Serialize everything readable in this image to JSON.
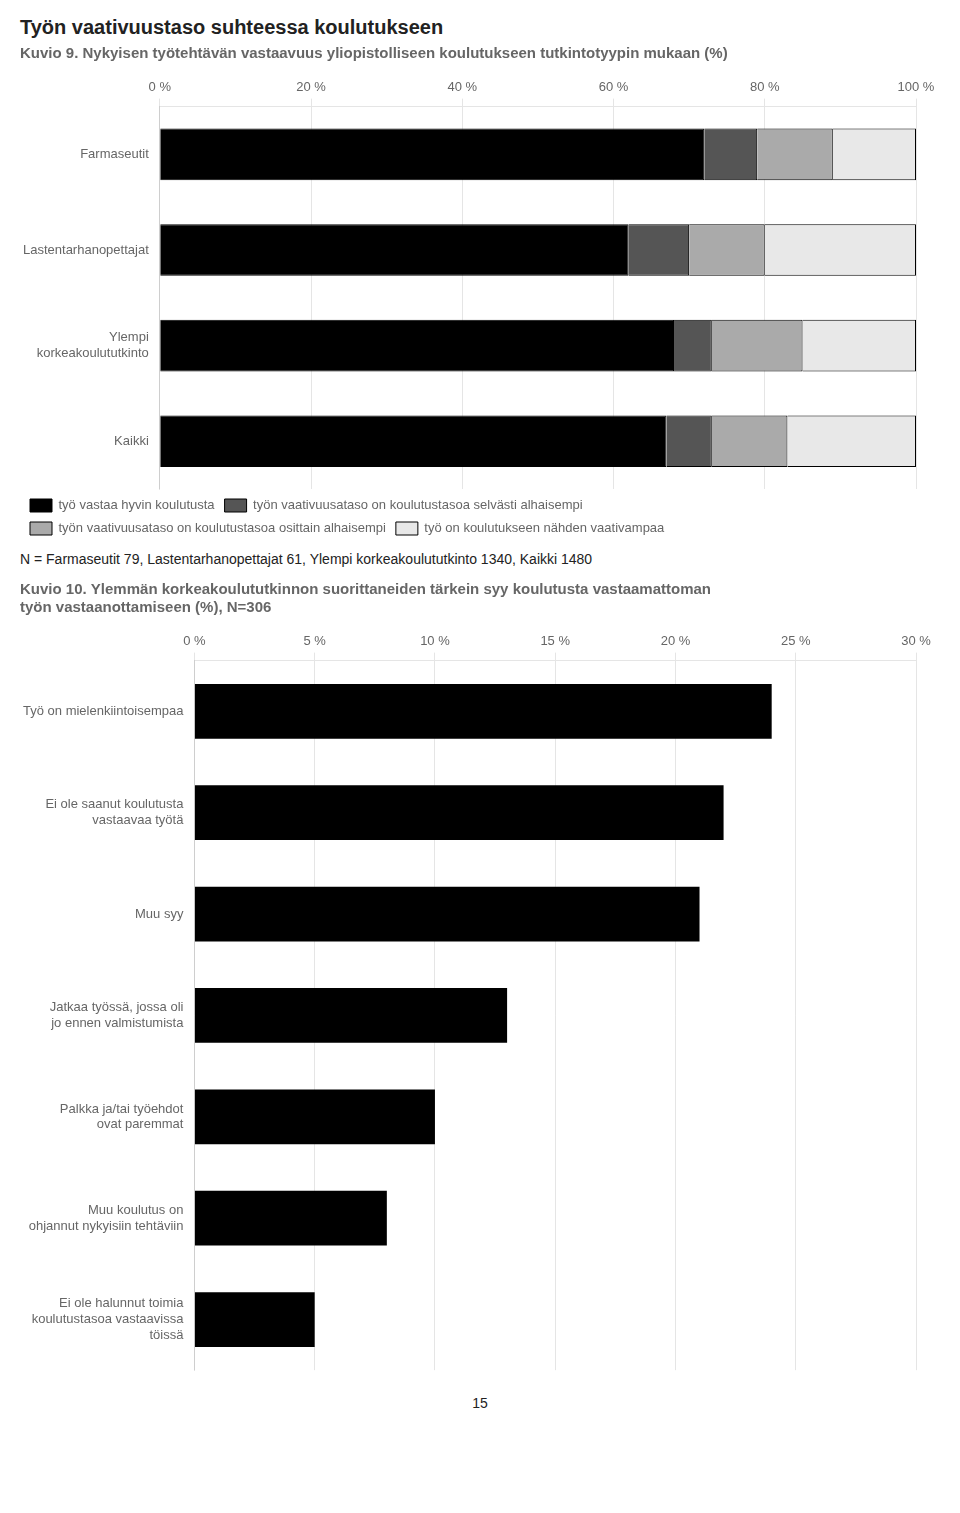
{
  "title": "Työn vaativuustaso suhteessa koulutukseen",
  "annotations": [
    "15"
  ],
  "chart_data": [
    {
      "type": "bar",
      "title": "Kuvio 9. Nykyisen työtehtävän vastaavuus yliopistolliseen koulutukseen tutkintotyypin mukaan (%)",
      "orientation": "horizontal",
      "stacked": true,
      "categories": [
        "Farmaseutit",
        "Lastentarhanopettajat",
        "Ylempi\nkorkeakoulututkinto",
        "Kaikki"
      ],
      "series": [
        {
          "name": "työ vastaa hyvin koulutusta",
          "color": "#000000",
          "values": [
            72,
            62,
            68,
            67
          ]
        },
        {
          "name": "työn vaativuusataso on koulutustasoa selvästi alhaisempi",
          "color": "#555555",
          "values": [
            7,
            8,
            5,
            6
          ]
        },
        {
          "name": "työn vaativuusataso on koulutustasoa osittain alhaisempi",
          "color": "#aaaaaa",
          "values": [
            10,
            10,
            12,
            10
          ]
        },
        {
          "name": "työ on koulutukseen nähden vaativampaa",
          "color": "#e8e8e8",
          "values": [
            11,
            20,
            15,
            17
          ]
        }
      ],
      "xlim": [
        0,
        100
      ],
      "xticks": [
        {
          "value": 0,
          "label": "0 %"
        },
        {
          "value": 20,
          "label": "20 %"
        },
        {
          "value": 40,
          "label": "40 %"
        },
        {
          "value": 60,
          "label": "60 %"
        },
        {
          "value": 80,
          "label": "80 %"
        },
        {
          "value": 100,
          "label": "100 %"
        }
      ],
      "grid": true,
      "legend": "bottom",
      "annotations": [
        "N = Farmaseutit 79, Lastentarhanopettajat 61, Ylempi korkeakoulututkinto 1340, Kaikki 1480"
      ]
    },
    {
      "type": "bar",
      "title": "Kuvio 10. Ylemmän korkeakoulututkinnon suorittaneiden tärkein syy koulutusta vastaamattoman\ntyön vastaanottamiseen (%), N=306",
      "orientation": "horizontal",
      "categories": [
        "Työ on mielenkiintoisempaa",
        "Ei ole saanut koulutusta\nvastaavaa työtä",
        "Muu syy",
        "Jatkaa työssä, jossa oli\njo ennen valmistumista",
        "Palkka ja/tai työehdot\novat paremmat",
        "Muu koulutus on\nohjannut nykyisiin tehtäviin",
        "Ei ole halunnut toimia\nkoulutustasoa vastaavissa\ntöissä"
      ],
      "values": [
        24,
        22,
        21,
        13,
        10,
        8,
        5
      ],
      "color": "#000000",
      "xlim": [
        0,
        30
      ],
      "xticks": [
        {
          "value": 0,
          "label": "0 %"
        },
        {
          "value": 5,
          "label": "5 %"
        },
        {
          "value": 10,
          "label": "10 %"
        },
        {
          "value": 15,
          "label": "15 %"
        },
        {
          "value": 20,
          "label": "20 %"
        },
        {
          "value": 25,
          "label": "25 %"
        },
        {
          "value": 30,
          "label": "30 %"
        }
      ],
      "grid": true
    }
  ]
}
